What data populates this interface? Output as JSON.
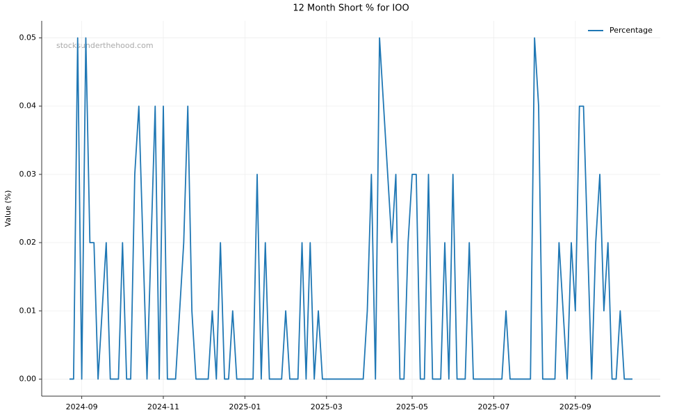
{
  "chart_data": {
    "type": "line",
    "title": "12 Month Short % for IOO",
    "y_label": "Value (%)",
    "watermark": "stocksunderthehood.com",
    "legend": "upper right",
    "grid": true,
    "categories": [
      null,
      null,
      null,
      "2024-09",
      null,
      null,
      null,
      null,
      null,
      null,
      null,
      null,
      null,
      null,
      null,
      null,
      null,
      null,
      null,
      null,
      null,
      null,
      null,
      "2024-11",
      null,
      null,
      null,
      null,
      null,
      null,
      null,
      null,
      null,
      null,
      null,
      null,
      null,
      null,
      null,
      null,
      null,
      null,
      null,
      "2025-01",
      null,
      null,
      null,
      null,
      null,
      null,
      null,
      null,
      null,
      null,
      null,
      null,
      null,
      null,
      null,
      null,
      null,
      null,
      null,
      "2025-03",
      null,
      null,
      null,
      null,
      null,
      null,
      null,
      null,
      null,
      null,
      null,
      null,
      null,
      null,
      null,
      null,
      null,
      null,
      null,
      null,
      "2025-05",
      null,
      null,
      null,
      null,
      null,
      null,
      null,
      null,
      null,
      null,
      null,
      null,
      null,
      null,
      null,
      null,
      null,
      null,
      null,
      "2025-07",
      null,
      null,
      null,
      null,
      null,
      null,
      null,
      null,
      null,
      null,
      null,
      null,
      null,
      null,
      null,
      null,
      null,
      null,
      null,
      "2025-09",
      null,
      null,
      null,
      null,
      null,
      null,
      null,
      null,
      null,
      null,
      null,
      null,
      null,
      null
    ],
    "series": [
      {
        "name": "Percentage",
        "color": "#1f77b4",
        "values": [
          0,
          0,
          0.05,
          0,
          0.05,
          0.02,
          0.02,
          0,
          0.01,
          0.02,
          0,
          0,
          0,
          0.02,
          0,
          0,
          0.03,
          0.04,
          0.02,
          0,
          0.02,
          0.04,
          0,
          0.04,
          0,
          0,
          0,
          0.01,
          0.02,
          0.04,
          0.01,
          0,
          0,
          0,
          0,
          0.01,
          0,
          0.02,
          0,
          0,
          0.01,
          0,
          0,
          0,
          0,
          0,
          0.03,
          0,
          0.02,
          0,
          0,
          0,
          0,
          0.01,
          0,
          0,
          0,
          0.02,
          0,
          0.02,
          0,
          0.01,
          0,
          0,
          0,
          0,
          0,
          0,
          0,
          0,
          0,
          0,
          0,
          0.01,
          0.03,
          0,
          0.05,
          0.04,
          0.03,
          0.02,
          0.03,
          0,
          0,
          0.02,
          0.03,
          0.03,
          0,
          0,
          0.03,
          0,
          0,
          0,
          0.02,
          0,
          0.03,
          0,
          0,
          0,
          0.02,
          0,
          0,
          0,
          0,
          0,
          0,
          0,
          0,
          0.01,
          0,
          0,
          0,
          0,
          0,
          0,
          0.05,
          0.04,
          0,
          0,
          0,
          0,
          0.02,
          0.01,
          0,
          0.02,
          0.01,
          0.04,
          0.04,
          0.02,
          0,
          0.02,
          0.03,
          0.01,
          0.02,
          0,
          0,
          0.01,
          0,
          0,
          0
        ]
      }
    ],
    "ylim": [
      -0.0025,
      0.0525
    ],
    "yticks": [
      {
        "value": 0,
        "label": "0.00"
      },
      0.01,
      0.02,
      0.03,
      0.04,
      0.05
    ]
  }
}
